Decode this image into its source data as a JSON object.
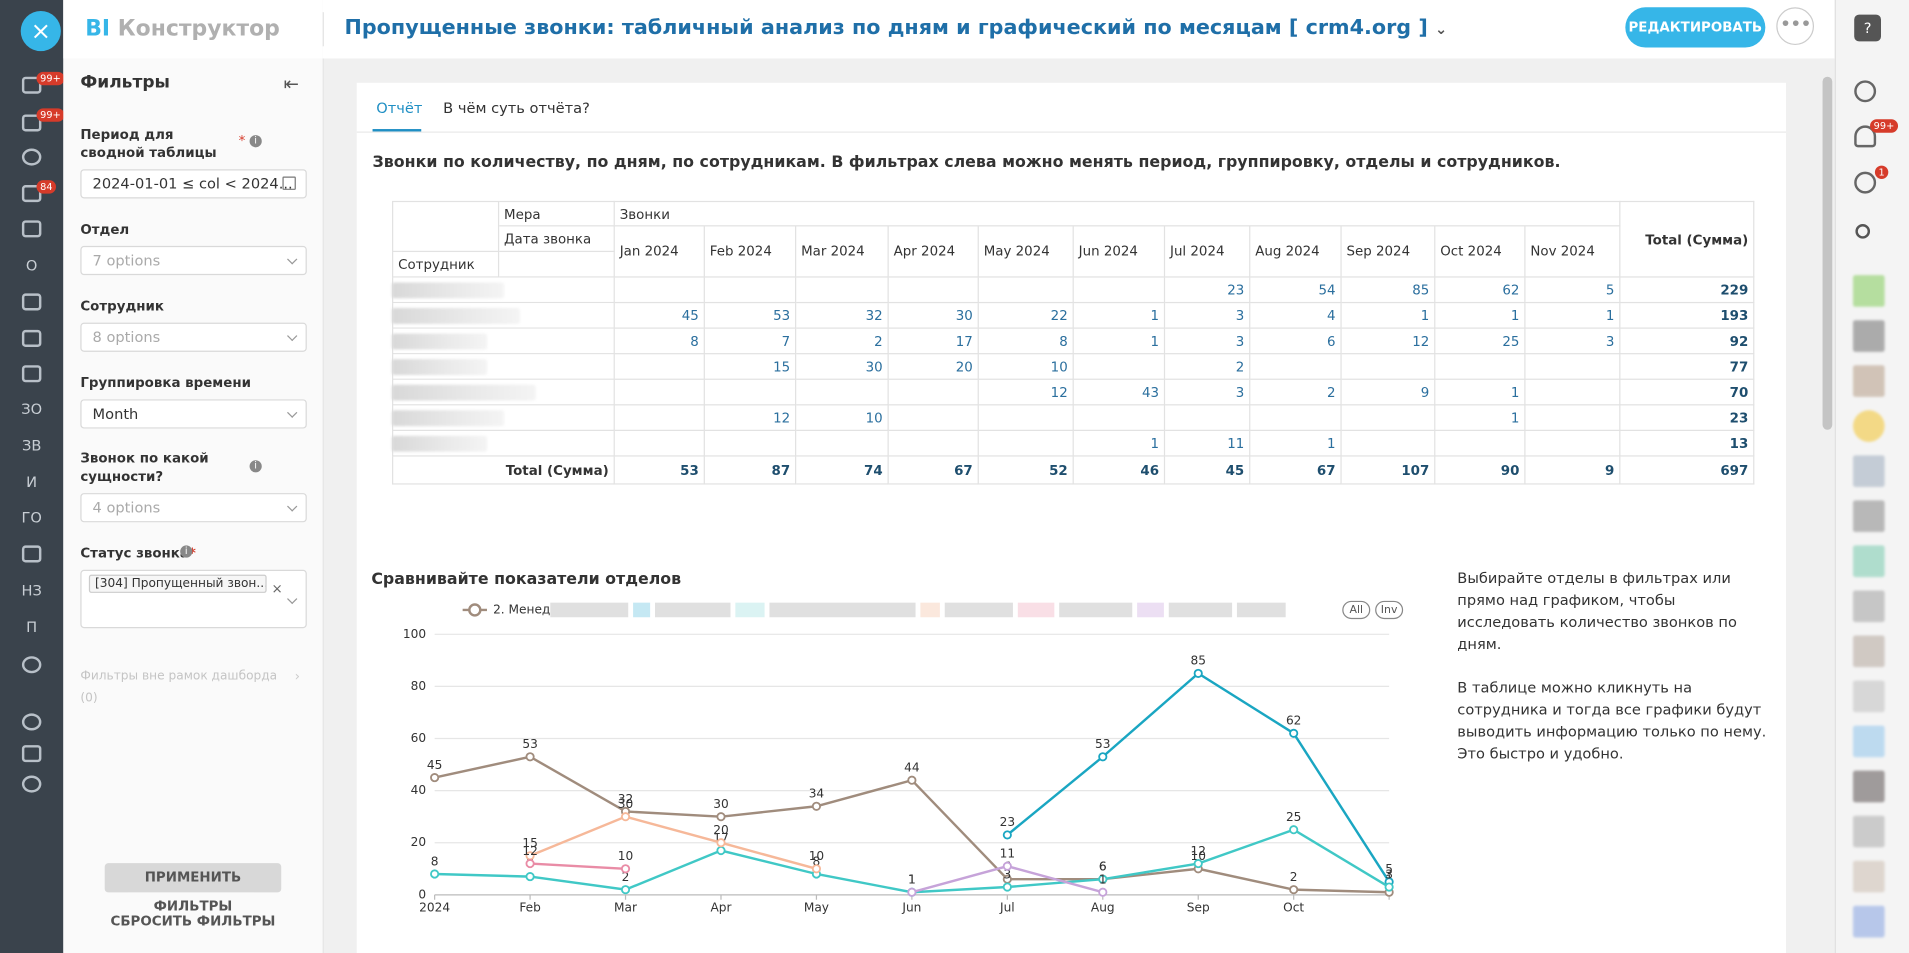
{
  "app": {
    "close": "×",
    "brand_short": "BI",
    "brand": "Конструктор",
    "title": "Пропущенные звонки: табличный анализ по дням и графический по месяцам [ crm4.org ]",
    "edit_button": "РЕДАКТИРОВАТЬ"
  },
  "sidebar": {
    "badges": [
      "99+",
      "99+",
      "84"
    ],
    "items": [
      "О",
      "ЗО",
      "ЗВ",
      "И",
      "ГО",
      "НЗ",
      "П"
    ]
  },
  "filters": {
    "title": "Фильтры",
    "fields": [
      {
        "label": "Период для сводной таблицы",
        "required": "*",
        "value": "2024-01-01 ≤ col < 2024..."
      },
      {
        "label": "Отдел",
        "value": "7 options"
      },
      {
        "label": "Сотрудник",
        "value": "8 options"
      },
      {
        "label": "Группировка времени",
        "value": "Month"
      },
      {
        "label": "Звонок по какой сущности?",
        "value": "4 options"
      },
      {
        "label": "Статус звонка",
        "required": "*",
        "value": "[304] Пропущенный звон..."
      }
    ],
    "outside": "Фильтры вне рамок дашборда",
    "outside_count": "(0)",
    "apply": "ПРИМЕНИТЬ ФИЛЬТРЫ",
    "reset": "СБРОСИТЬ ФИЛЬТРЫ"
  },
  "tabs": [
    "Отчёт",
    "В чём суть отчёта?"
  ],
  "report_heading": "Звонки по количеству, по дням, по сотрудникам. В фильтрах слева можно менять период, группировку, отделы и сотрудников.",
  "table": {
    "measure_label": "Мера",
    "measure": "Звонки",
    "date_label": "Дата звонка",
    "employee_label": "Сотрудник",
    "columns": [
      "Jan 2024",
      "Feb 2024",
      "Mar 2024",
      "Apr 2024",
      "May 2024",
      "Jun 2024",
      "Jul 2024",
      "Aug 2024",
      "Sep 2024",
      "Oct 2024",
      "Nov 2024"
    ],
    "total_label": "Total (Сумма)",
    "rows": [
      {
        "values": [
          null,
          null,
          null,
          null,
          null,
          null,
          23,
          54,
          85,
          62,
          5
        ],
        "total": 229
      },
      {
        "values": [
          45,
          53,
          32,
          30,
          22,
          1,
          3,
          4,
          1,
          1,
          1
        ],
        "total": 193
      },
      {
        "values": [
          8,
          7,
          2,
          17,
          8,
          1,
          3,
          6,
          12,
          25,
          3
        ],
        "total": 92
      },
      {
        "values": [
          null,
          15,
          30,
          20,
          10,
          null,
          2,
          null,
          null,
          null,
          null
        ],
        "total": 77
      },
      {
        "values": [
          null,
          null,
          null,
          null,
          12,
          43,
          3,
          2,
          9,
          1,
          null
        ],
        "total": 70
      },
      {
        "values": [
          null,
          12,
          10,
          null,
          null,
          null,
          null,
          null,
          null,
          1,
          null
        ],
        "total": 23
      },
      {
        "values": [
          null,
          null,
          null,
          null,
          null,
          1,
          11,
          1,
          null,
          null,
          null
        ],
        "total": 13
      }
    ],
    "totals": {
      "label": "Total (Сумма)",
      "values": [
        53,
        87,
        74,
        67,
        52,
        46,
        45,
        67,
        107,
        90,
        9
      ],
      "total": 697
    }
  },
  "chart_data": {
    "type": "line",
    "title": "Сравнивайте показатели отделов",
    "legend_label": "2. Менед",
    "legend_buttons": [
      "All",
      "Inv"
    ],
    "categories": [
      "2024",
      "Feb",
      "Mar",
      "Apr",
      "May",
      "Jun",
      "Jul",
      "Aug",
      "Sep",
      "Oct",
      null
    ],
    "series": [
      {
        "color": "#a08c7d",
        "values": [
          45,
          53,
          32,
          30,
          34,
          44,
          6,
          6,
          10,
          2,
          1
        ]
      },
      {
        "color": "#1aa6c2",
        "values": [
          null,
          null,
          null,
          null,
          null,
          null,
          23,
          53,
          85,
          62,
          5
        ]
      },
      {
        "color": "#40c8c6",
        "values": [
          8,
          7,
          2,
          17,
          8,
          1,
          3,
          6,
          12,
          25,
          3
        ]
      },
      {
        "color": "#f6b899",
        "values": [
          null,
          15,
          30,
          20,
          10,
          null,
          null,
          null,
          null,
          null,
          null
        ]
      },
      {
        "color": "#e98ca6",
        "values": [
          null,
          12,
          10,
          null,
          null,
          null,
          null,
          null,
          null,
          null,
          null
        ]
      },
      {
        "color": "#c6a3d9",
        "values": [
          null,
          null,
          null,
          null,
          null,
          1,
          11,
          1,
          null,
          null,
          null
        ]
      }
    ],
    "ylim": [
      0,
      100
    ],
    "yticks": [
      0,
      20,
      40,
      60,
      80,
      100
    ],
    "grid": true,
    "data_labels": true
  },
  "notes": [
    "Выбирайте отделы в фильтрах или прямо над графиком, чтобы исследовать количество звонков по дням.",
    "В таблице можно кликнуть на сотрудника и тогда все графики будут выводить информацию только по нему.",
    "Это быстро и удобно."
  ],
  "rightbar": {
    "badges": [
      "99+",
      "1"
    ]
  }
}
